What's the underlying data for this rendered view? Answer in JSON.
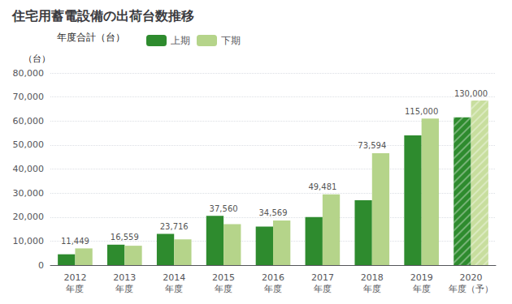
{
  "chart_data": {
    "type": "bar",
    "title": "住宅用蓄電設備の出荷台数推移",
    "ylabel": "（台）",
    "categories": [
      "2012\n年度",
      "2013\n年度",
      "2014\n年度",
      "2015\n年度",
      "2016\n年度",
      "2017\n年度",
      "2018\n年度",
      "2019\n年度",
      "2020\n年度（予）"
    ],
    "series": [
      {
        "name": "上期",
        "color": "#2e8b2e",
        "values": [
          4500,
          8500,
          13000,
          20500,
          16000,
          20000,
          27000,
          54000,
          61500
        ]
      },
      {
        "name": "下期",
        "color": "#b5d48a",
        "colors": [
          "#b5d48a",
          "#b5d48a",
          "#b5d48a",
          "#b5d48a",
          "#b5d48a",
          "#b5d48a",
          "#b5d48a",
          "#b5d48a",
          "#c8de9e"
        ],
        "values": [
          6949,
          8059,
          10716,
          17060,
          18569,
          29481,
          46594,
          61000,
          68500
        ]
      }
    ],
    "totals": [
      11449,
      16559,
      23716,
      37560,
      34569,
      49481,
      73594,
      115000,
      130000
    ],
    "total_labels": [
      "11,449",
      "16,559",
      "23,716",
      "37,560",
      "34,569",
      "49,481",
      "73,594",
      "115,000",
      "130,000"
    ],
    "legend_title": "年度合計（台）",
    "ylim": [
      0,
      80000
    ],
    "yticks": [
      0,
      {
        "value": 10000,
        "label": "10,000"
      },
      {
        "value": 20000,
        "label": "20,000"
      },
      {
        "value": 30000,
        "label": "30,000"
      },
      {
        "value": 40000,
        "label": "40,000"
      },
      {
        "value": 50000,
        "label": "50,000"
      },
      {
        "value": 60000,
        "label": "60,000"
      },
      {
        "value": 70000,
        "label": "70,000"
      },
      {
        "value": 80000,
        "label": "80,000"
      }
    ],
    "grid": true,
    "legend": "top"
  }
}
